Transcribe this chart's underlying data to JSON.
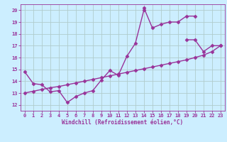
{
  "background_color": "#cceeff",
  "grid_color": "#b0cccc",
  "line_color": "#993399",
  "marker": "D",
  "marker_size": 2.5,
  "line_width": 1.0,
  "xlabel": "Windchill (Refroidissement éolien,°C)",
  "xlabel_color": "#993399",
  "tick_color": "#993399",
  "xlim": [
    -0.5,
    23.5
  ],
  "ylim": [
    11.5,
    20.5
  ],
  "yticks": [
    12,
    13,
    14,
    15,
    16,
    17,
    18,
    19,
    20
  ],
  "xticks": [
    0,
    1,
    2,
    3,
    4,
    5,
    6,
    7,
    8,
    9,
    10,
    11,
    12,
    13,
    14,
    15,
    16,
    17,
    18,
    19,
    20,
    21,
    22,
    23
  ],
  "series": [
    {
      "x": [
        0,
        1,
        2,
        3,
        4,
        5,
        6,
        7,
        8,
        9,
        10,
        11,
        12,
        13,
        14
      ],
      "y": [
        14.8,
        13.8,
        13.7,
        13.1,
        13.2,
        12.2,
        12.7,
        13.0,
        13.2,
        14.1,
        14.9,
        14.5,
        16.1,
        17.2,
        20.0
      ]
    },
    {
      "x": [
        14,
        15,
        16,
        17,
        18,
        19,
        20
      ],
      "y": [
        20.2,
        18.5,
        18.8,
        19.0,
        19.0,
        19.5,
        19.5
      ]
    },
    {
      "x": [
        19,
        20,
        21,
        22,
        23
      ],
      "y": [
        17.5,
        17.5,
        16.5,
        17.0,
        17.0
      ]
    },
    {
      "x": [
        0,
        1,
        2,
        3,
        4,
        5,
        6,
        7,
        8,
        9,
        10,
        11,
        12,
        13,
        14,
        15,
        16,
        17,
        18,
        19,
        20,
        21,
        22,
        23
      ],
      "y": [
        13.0,
        13.15,
        13.3,
        13.45,
        13.55,
        13.7,
        13.85,
        14.0,
        14.15,
        14.3,
        14.45,
        14.6,
        14.75,
        14.9,
        15.05,
        15.2,
        15.35,
        15.5,
        15.65,
        15.8,
        16.0,
        16.2,
        16.5,
        17.0
      ]
    }
  ]
}
